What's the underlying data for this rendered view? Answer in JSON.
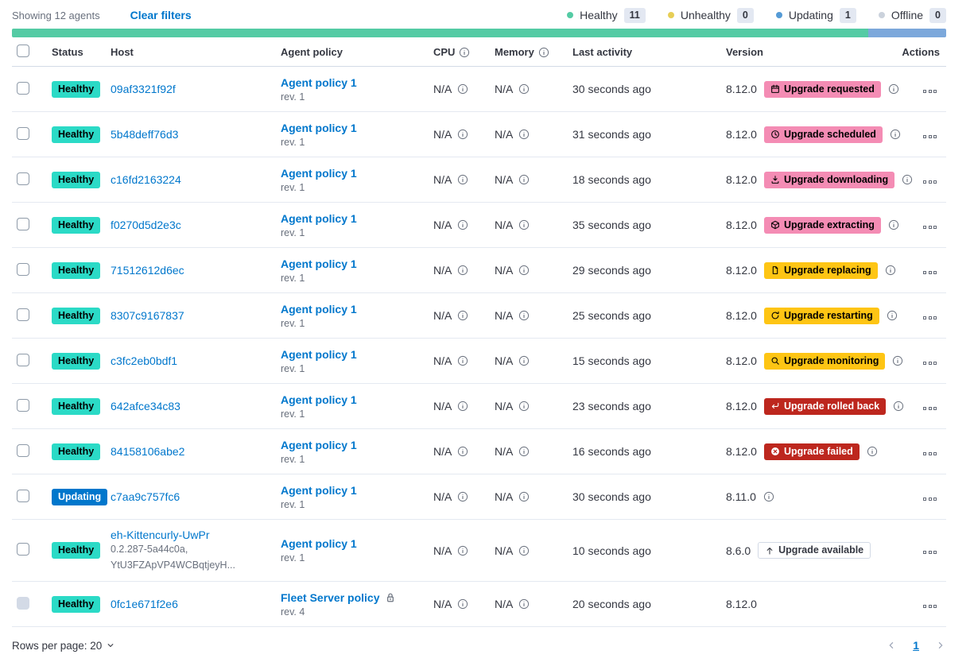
{
  "toolbar": {
    "showing": "Showing 12 agents",
    "clear_filters": "Clear filters"
  },
  "legend": [
    {
      "key": "healthy",
      "label": "Healthy",
      "count": "11",
      "color": "#54CBA4"
    },
    {
      "key": "unhealthy",
      "label": "Unhealthy",
      "count": "0",
      "color": "#E7CE56"
    },
    {
      "key": "updating",
      "label": "Updating",
      "count": "1",
      "color": "#559BD6"
    },
    {
      "key": "offline",
      "label": "Offline",
      "count": "0",
      "color": "#CBD2DC"
    }
  ],
  "health_bar": {
    "segments": [
      {
        "status": "healthy",
        "color": "#54CBA4",
        "percent": 91.7
      },
      {
        "status": "updating",
        "color": "#7CA8DB",
        "percent": 8.3
      }
    ]
  },
  "table": {
    "headers": [
      {
        "label": "Status"
      },
      {
        "label": "Host"
      },
      {
        "label": "Agent policy"
      },
      {
        "label": "CPU",
        "info": true
      },
      {
        "label": "Memory",
        "info": true
      },
      {
        "label": "Last activity"
      },
      {
        "label": "Version"
      },
      {
        "label": "Actions"
      }
    ]
  },
  "rows": [
    {
      "status": "Healthy",
      "status_variant": "healthy",
      "host": "09af3321f92f",
      "policy": "Agent policy 1",
      "policy_rev": "rev. 1",
      "cpu": "N/A",
      "memory": "N/A",
      "last_activity": "30 seconds ago",
      "version": "8.12.0",
      "upgrade": {
        "label": "Upgrade requested",
        "icon": "calendar",
        "variant": "pink"
      },
      "version_info": true
    },
    {
      "status": "Healthy",
      "status_variant": "healthy",
      "host": "5b48deff76d3",
      "policy": "Agent policy 1",
      "policy_rev": "rev. 1",
      "cpu": "N/A",
      "memory": "N/A",
      "last_activity": "31 seconds ago",
      "version": "8.12.0",
      "upgrade": {
        "label": "Upgrade scheduled",
        "icon": "clock",
        "variant": "pink"
      },
      "version_info": true
    },
    {
      "status": "Healthy",
      "status_variant": "healthy",
      "host": "c16fd2163224",
      "policy": "Agent policy 1",
      "policy_rev": "rev. 1",
      "cpu": "N/A",
      "memory": "N/A",
      "last_activity": "18 seconds ago",
      "version": "8.12.0",
      "upgrade": {
        "label": "Upgrade downloading",
        "icon": "download",
        "variant": "pink"
      },
      "version_info": true
    },
    {
      "status": "Healthy",
      "status_variant": "healthy",
      "host": "f0270d5d2e3c",
      "policy": "Agent policy 1",
      "policy_rev": "rev. 1",
      "cpu": "N/A",
      "memory": "N/A",
      "last_activity": "35 seconds ago",
      "version": "8.12.0",
      "upgrade": {
        "label": "Upgrade extracting",
        "icon": "package",
        "variant": "pink"
      },
      "version_info": true
    },
    {
      "status": "Healthy",
      "status_variant": "healthy",
      "host": "71512612d6ec",
      "policy": "Agent policy 1",
      "policy_rev": "rev. 1",
      "cpu": "N/A",
      "memory": "N/A",
      "last_activity": "29 seconds ago",
      "version": "8.12.0",
      "upgrade": {
        "label": "Upgrade replacing",
        "icon": "document",
        "variant": "warning"
      },
      "version_info": true
    },
    {
      "status": "Healthy",
      "status_variant": "healthy",
      "host": "8307c9167837",
      "policy": "Agent policy 1",
      "policy_rev": "rev. 1",
      "cpu": "N/A",
      "memory": "N/A",
      "last_activity": "25 seconds ago",
      "version": "8.12.0",
      "upgrade": {
        "label": "Upgrade restarting",
        "icon": "refresh",
        "variant": "warning"
      },
      "version_info": true
    },
    {
      "status": "Healthy",
      "status_variant": "healthy",
      "host": "c3fc2eb0bdf1",
      "policy": "Agent policy 1",
      "policy_rev": "rev. 1",
      "cpu": "N/A",
      "memory": "N/A",
      "last_activity": "15 seconds ago",
      "version": "8.12.0",
      "upgrade": {
        "label": "Upgrade monitoring",
        "icon": "inspect",
        "variant": "warning"
      },
      "version_info": true
    },
    {
      "status": "Healthy",
      "status_variant": "healthy",
      "host": "642afce34c83",
      "policy": "Agent policy 1",
      "policy_rev": "rev. 1",
      "cpu": "N/A",
      "memory": "N/A",
      "last_activity": "23 seconds ago",
      "version": "8.12.0",
      "upgrade": {
        "label": "Upgrade rolled back",
        "icon": "return",
        "variant": "danger"
      },
      "version_info": true
    },
    {
      "status": "Healthy",
      "status_variant": "healthy",
      "host": "84158106abe2",
      "policy": "Agent policy 1",
      "policy_rev": "rev. 1",
      "cpu": "N/A",
      "memory": "N/A",
      "last_activity": "16 seconds ago",
      "version": "8.12.0",
      "upgrade": {
        "label": "Upgrade failed",
        "icon": "errorFilled",
        "variant": "danger"
      },
      "version_info": true
    },
    {
      "status": "Updating",
      "status_variant": "updating",
      "host": "c7aa9c757fc6",
      "policy": "Agent policy 1",
      "policy_rev": "rev. 1",
      "cpu": "N/A",
      "memory": "N/A",
      "last_activity": "30 seconds ago",
      "version": "8.11.0",
      "upgrade": null,
      "version_info": true
    },
    {
      "status": "Healthy",
      "status_variant": "healthy",
      "host": "eh-Kittencurly-UwPr",
      "host_sub": [
        "0.2.287-5a44c0a,",
        "YtU3FZApVP4WCBqtjeyH..."
      ],
      "policy": "Agent policy 1",
      "policy_rev": "rev. 1",
      "cpu": "N/A",
      "memory": "N/A",
      "last_activity": "10 seconds ago",
      "version": "8.6.0",
      "upgrade": {
        "label": "Upgrade available",
        "icon": "arrowUp",
        "variant": "hollow"
      },
      "version_info": false
    },
    {
      "status": "Healthy",
      "status_variant": "healthy",
      "host": "0fc1e671f2e6",
      "policy": "Fleet Server policy",
      "policy_lock": true,
      "policy_rev": "rev. 4",
      "cpu": "N/A",
      "memory": "N/A",
      "last_activity": "20 seconds ago",
      "version": "8.12.0",
      "upgrade": null,
      "version_info": false,
      "checkbox_disabled": true
    }
  ],
  "footer": {
    "rows_per_page": "Rows per page: 20",
    "page": "1"
  },
  "colors": {
    "healthy_badge": "#2BDAC6",
    "updating_badge": "#0077CC",
    "upgrade_pink": "#F48CB4",
    "upgrade_warning": "#FEC514",
    "upgrade_danger": "#BD271E",
    "link": "#0077CC"
  }
}
